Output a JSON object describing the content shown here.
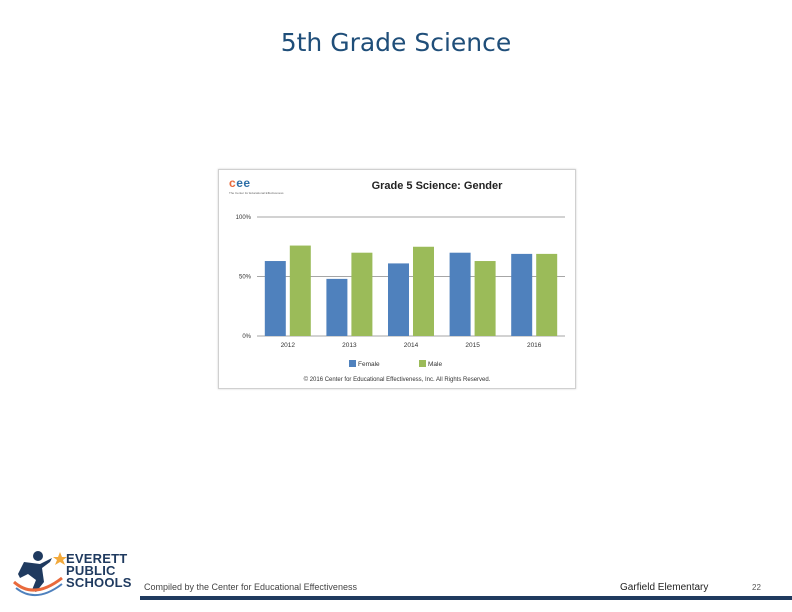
{
  "slide": {
    "title": "5th Grade Science"
  },
  "chart_logo": {
    "letters": [
      "c",
      "e",
      "e"
    ],
    "tagline": "The Center for Educational Effectiveness"
  },
  "chart_data": {
    "type": "bar",
    "title": "Grade 5 Science: Gender",
    "categories": [
      "2012",
      "2013",
      "2014",
      "2015",
      "2016"
    ],
    "series": [
      {
        "name": "Female",
        "color": "#4f81bd",
        "values": [
          63,
          48,
          61,
          70,
          69
        ]
      },
      {
        "name": "Male",
        "color": "#9bbb59",
        "values": [
          76,
          70,
          75,
          63,
          69
        ]
      }
    ],
    "y_ticks": [
      {
        "value": 0,
        "label": "0%"
      },
      {
        "value": 50,
        "label": "50%"
      },
      {
        "value": 100,
        "label": "100%"
      }
    ],
    "ylim": [
      0,
      100
    ],
    "grid": true,
    "legend_position": "bottom",
    "copyright": "© 2016 Center for Educational Effectiveness, Inc. All Rights Reserved."
  },
  "footer": {
    "logo_lines": [
      "EVERETT",
      "PUBLIC",
      "SCHOOLS"
    ],
    "compiled_by": "Compiled by the Center for Educational Effectiveness",
    "school": "Garfield Elementary",
    "page_number": "22",
    "accent_color": "#1f3a5f"
  }
}
